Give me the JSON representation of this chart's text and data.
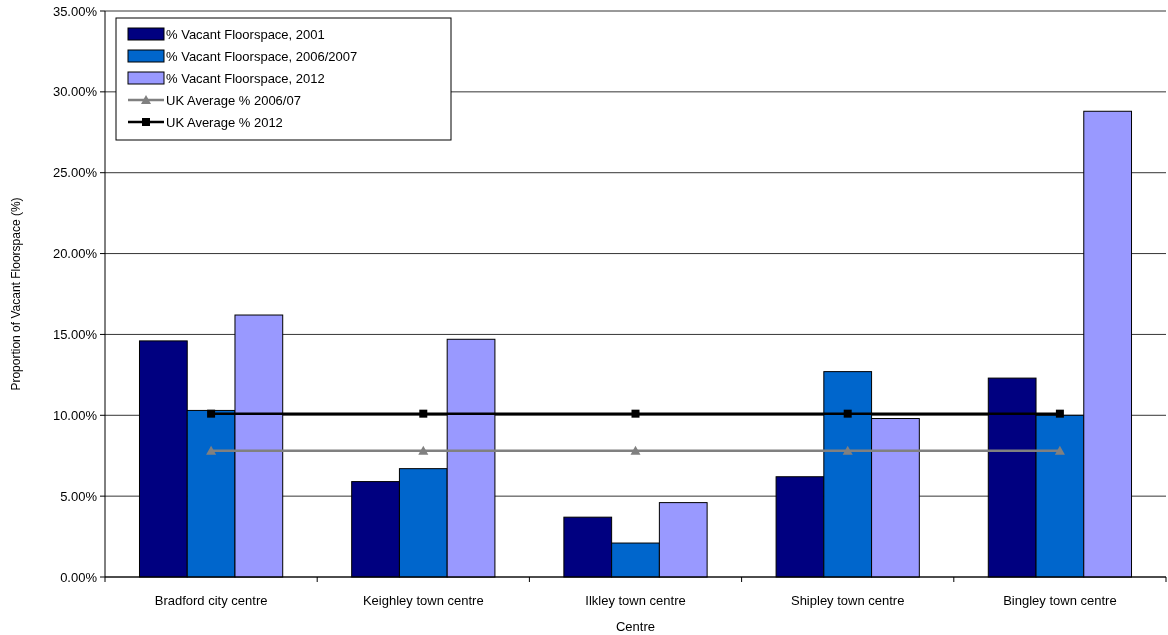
{
  "chart_data": {
    "type": "bar",
    "xlabel": "Centre",
    "ylabel": "Proportion of Vacant Floorspace (%)",
    "categories": [
      "Bradford city centre",
      "Keighley town centre",
      "Ilkley town centre",
      "Shipley town centre",
      "Bingley town centre"
    ],
    "series": [
      {
        "name": "% Vacant Floorspace, 2001",
        "color": "#000080",
        "values": [
          14.6,
          5.9,
          3.7,
          6.2,
          12.3
        ]
      },
      {
        "name": "% Vacant Floorspace, 2006/2007",
        "color": "#0066cc",
        "values": [
          10.3,
          6.7,
          2.1,
          12.7,
          10.0
        ]
      },
      {
        "name": "% Vacant Floorspace, 2012",
        "color": "#9999ff",
        "values": [
          16.2,
          14.7,
          4.6,
          9.8,
          28.8
        ]
      },
      {
        "name": "UK Average % 2006/07",
        "type": "line",
        "color": "#808080",
        "marker": "triangle",
        "values": [
          7.8,
          7.8,
          7.8,
          7.8,
          7.8
        ]
      },
      {
        "name": "UK Average % 2012",
        "type": "line",
        "color": "#000000",
        "marker": "square",
        "values": [
          10.1,
          10.1,
          10.1,
          10.1,
          10.1
        ]
      }
    ],
    "ylim": [
      0,
      35
    ],
    "yticks": [
      {
        "value": 0,
        "label": "0.00%"
      },
      {
        "value": 5,
        "label": "5.00%"
      },
      {
        "value": 10,
        "label": "10.00%"
      },
      {
        "value": 15,
        "label": "15.00%"
      },
      {
        "value": 20,
        "label": "20.00%"
      },
      {
        "value": 25,
        "label": "25.00%"
      },
      {
        "value": 30,
        "label": "30.00%"
      },
      {
        "value": 35,
        "label": "35.00%"
      }
    ],
    "grid": "y",
    "legend": "top left"
  }
}
